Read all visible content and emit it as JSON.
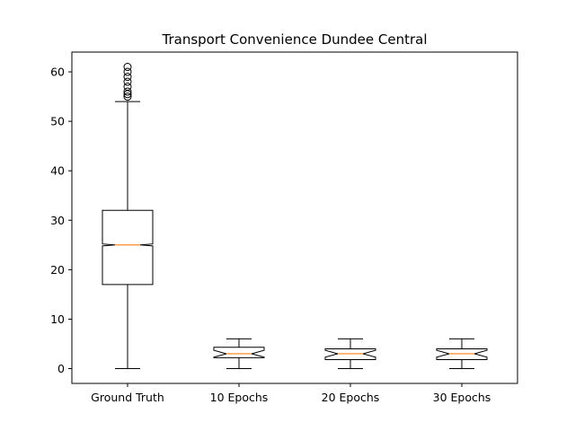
{
  "chart_data": {
    "type": "boxplot",
    "title": "Transport Convenience Dundee Central",
    "xlabel": "",
    "ylabel": "",
    "ylim": [
      -3,
      64
    ],
    "yticks": [
      0,
      10,
      20,
      30,
      40,
      50,
      60
    ],
    "ytick_labels": [
      "0",
      "10",
      "20",
      "30",
      "40",
      "50",
      "60"
    ],
    "grid": false,
    "notched": true,
    "colors": {
      "box": "#000000",
      "median": "#ff7f0e",
      "background": "#ffffff"
    },
    "categories": [
      "Ground Truth",
      "10 Epochs",
      "20 Epochs",
      "30 Epochs"
    ],
    "boxes": [
      {
        "whisker_low": 0,
        "q1": 17,
        "notch_low": 24.8,
        "median": 25,
        "notch_high": 25.2,
        "q3": 32,
        "whisker_high": 54,
        "outliers": [
          55,
          55.5,
          56,
          57,
          58,
          59,
          60,
          61
        ]
      },
      {
        "whisker_low": 0,
        "q1": 2.2,
        "notch_low": 2.3,
        "median": 3,
        "notch_high": 3.7,
        "q3": 4.3,
        "whisker_high": 6,
        "outliers": []
      },
      {
        "whisker_low": 0,
        "q1": 1.8,
        "notch_low": 2.3,
        "median": 3,
        "notch_high": 3.7,
        "q3": 4.0,
        "whisker_high": 6,
        "outliers": []
      },
      {
        "whisker_low": 0,
        "q1": 1.8,
        "notch_low": 2.3,
        "median": 3,
        "notch_high": 3.7,
        "q3": 4.0,
        "whisker_high": 6,
        "outliers": []
      }
    ]
  }
}
